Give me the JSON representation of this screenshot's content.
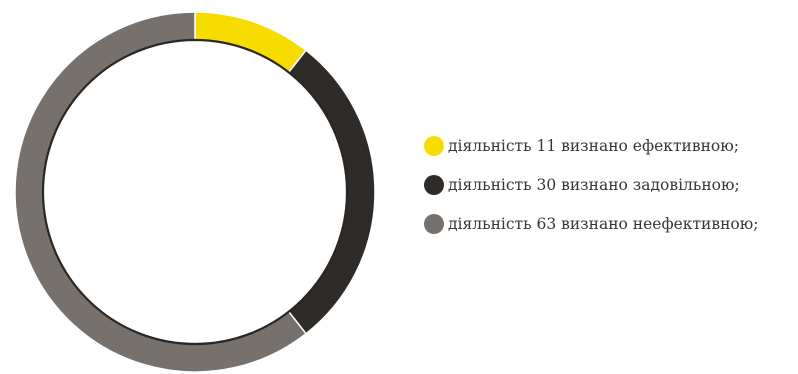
{
  "chart_data": {
    "type": "pie",
    "variant": "donut",
    "legend_position": "right",
    "slices": [
      {
        "label": "діяльність 11 визнано ефективною;",
        "value": 11,
        "color": "#f7dc00"
      },
      {
        "label": "діяльність 30 визнано задовільною;",
        "value": 30,
        "color": "#2f2b29"
      },
      {
        "label": "діяльність 63 визнано неефективною;",
        "value": 63,
        "color": "#77716d"
      }
    ],
    "total": 104
  }
}
